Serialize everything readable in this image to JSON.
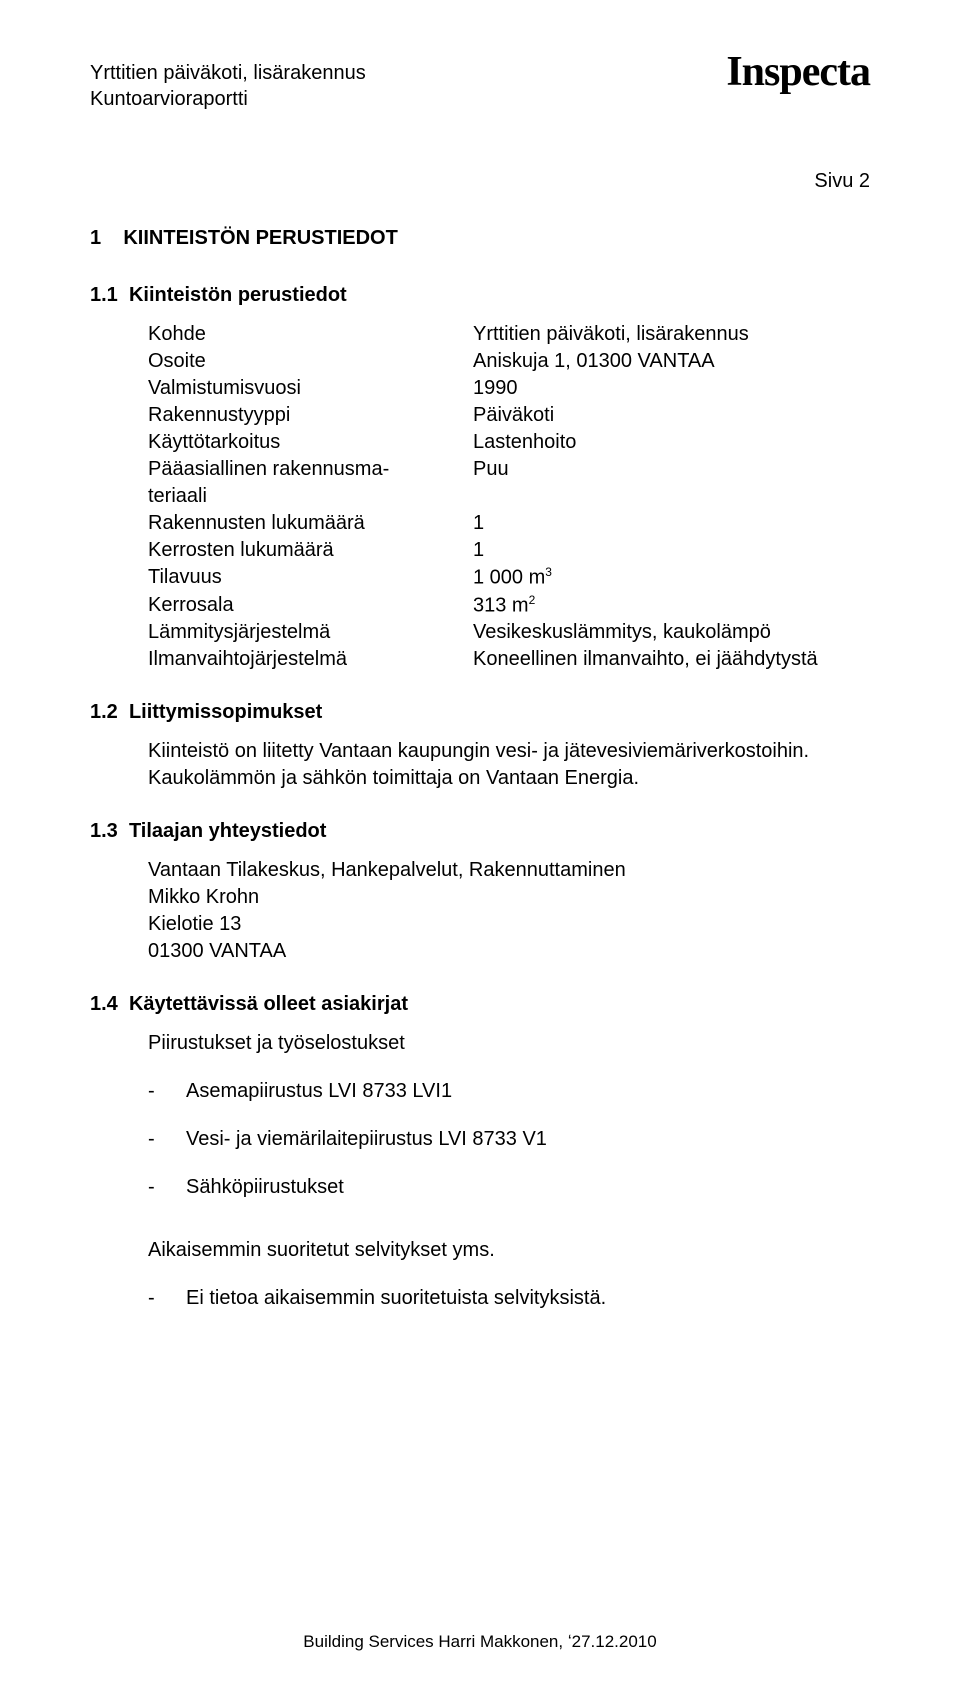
{
  "header": {
    "line1": "Yrttitien päiväkoti, lisärakennus",
    "line2": "Kuntoarvioraportti",
    "logo": "Inspecta",
    "page_label": "Sivu 2"
  },
  "section1": {
    "number": "1",
    "title": "KIINTEISTÖN PERUSTIEDOT"
  },
  "section1_1": {
    "number": "1.1",
    "title": "Kiinteistön perustiedot",
    "kv": [
      {
        "k": "Kohde",
        "v": "Yrttitien päiväkoti, lisärakennus"
      },
      {
        "k": "Osoite",
        "v": "Aniskuja 1, 01300 VANTAA"
      },
      {
        "k": "Valmistumisvuosi",
        "v": "1990"
      },
      {
        "k": "Rakennustyyppi",
        "v": "Päiväkoti"
      },
      {
        "k": "Käyttötarkoitus",
        "v": "Lastenhoito"
      },
      {
        "k": "Pääasiallinen rakennusma-",
        "v": "Puu"
      },
      {
        "k": "teriaali",
        "v": ""
      },
      {
        "k": "Rakennusten lukumäärä",
        "v": "1"
      },
      {
        "k": "Kerrosten lukumäärä",
        "v": "1"
      },
      {
        "k": "Tilavuus",
        "v_html": "1 000 m<sup>3</sup>"
      },
      {
        "k": "Kerrosala",
        "v_html": "313 m<sup>2</sup>"
      },
      {
        "k": "Lämmitysjärjestelmä",
        "v": "Vesikeskuslämmitys, kaukolämpö"
      },
      {
        "k": "Ilmanvaihtojärjestelmä",
        "v": "Koneellinen ilmanvaihto, ei jäähdytystä"
      }
    ]
  },
  "section1_2": {
    "number": "1.2",
    "title": "Liittymissopimukset",
    "paragraphs": [
      "Kiinteistö on liitetty Vantaan kaupungin vesi- ja jätevesiviemäriverkostoihin. Kaukolämmön ja sähkön toimittaja on Vantaan Energia."
    ]
  },
  "section1_3": {
    "number": "1.3",
    "title": "Tilaajan yhteystiedot",
    "lines": [
      "Vantaan Tilakeskus, Hankepalvelut, Rakennuttaminen",
      "Mikko Krohn",
      "Kielotie 13",
      "01300 VANTAA"
    ]
  },
  "section1_4": {
    "number": "1.4",
    "title": "Käytettävissä olleet asiakirjat",
    "intro": "Piirustukset ja työselostukset",
    "bullets": [
      "Asemapiirustus LVI 8733 LVI1",
      "Vesi- ja viemärilaitepiirustus LVI 8733 V1",
      "Sähköpiirustukset"
    ],
    "subheading": "Aikaisemmin suoritetut selvitykset yms.",
    "bullets2": [
      "Ei tietoa aikaisemmin suoritetuista selvityksistä."
    ]
  },
  "footer": {
    "text": "Building Services Harri Makkonen, ʻ27.12.2010"
  }
}
